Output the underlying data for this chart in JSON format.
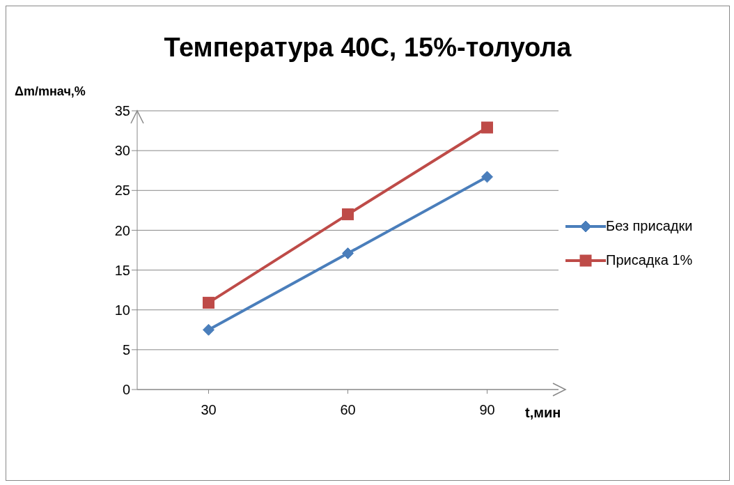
{
  "chart_data": {
    "type": "line",
    "title": "Температура 40С, 15%-толуола",
    "xlabel": "t,мин",
    "ylabel": "Δm/mнач,%",
    "categories": [
      "30",
      "60",
      "90"
    ],
    "series": [
      {
        "name": "Без присадки",
        "color": "#4a7ebb",
        "marker": "diamond",
        "values": [
          7.5,
          17.1,
          26.7
        ]
      },
      {
        "name": "Присадка 1%",
        "color": "#be4b48",
        "marker": "square",
        "values": [
          10.9,
          22.0,
          32.9
        ]
      }
    ],
    "ylim": [
      0,
      35
    ],
    "yticks": [
      0,
      5,
      10,
      15,
      20,
      25,
      30,
      35
    ],
    "grid": "y",
    "legend": "right",
    "line_style": "solid"
  }
}
